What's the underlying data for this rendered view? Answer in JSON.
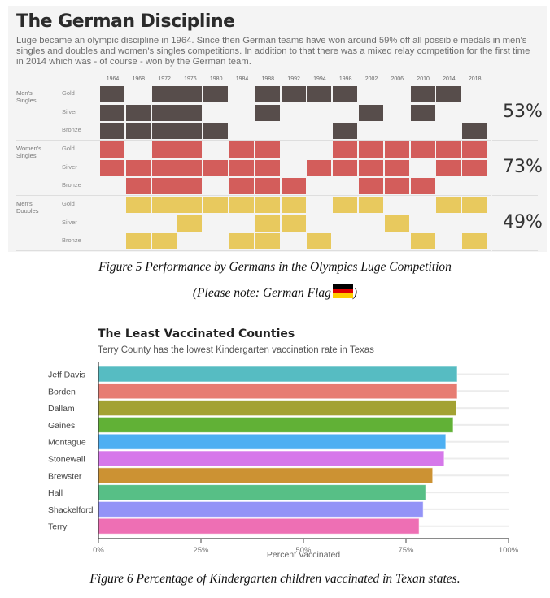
{
  "figure5": {
    "title": "The German Discipline",
    "description": "Luge became an olympic discipline in 1964. Since then German teams have won around 59% off all possible medals in men's singles and doubles and women's singles competitions. In addition to that there was a mixed relay competition for the first time in 2014 which was - of course - won by the German team.",
    "caption": "Figure 5 Performance by Germans in the Olympics Luge Competition",
    "note_prefix": "(Please note: German Flag",
    "note_suffix": ")",
    "flag_colors": [
      "#000000",
      "#dd0000",
      "#ffce00"
    ]
  },
  "figure6": {
    "caption": "Figure 6 Percentage of Kindergarten children vaccinated in Texan states."
  },
  "chart_data": [
    {
      "type": "heatmap",
      "title": "The German Discipline",
      "x": [
        "1964",
        "1968",
        "1972",
        "1976",
        "1980",
        "1984",
        "1988",
        "1992",
        "1994",
        "1998",
        "2002",
        "2006",
        "2010",
        "2014",
        "2018"
      ],
      "groups": [
        {
          "name": "Men's Singles",
          "color": "#574d4b",
          "percent_label": "53%",
          "rows": [
            {
              "medal": "Gold",
              "won": [
                1,
                0,
                1,
                1,
                1,
                0,
                1,
                1,
                1,
                1,
                0,
                0,
                1,
                1,
                0
              ]
            },
            {
              "medal": "Silver",
              "won": [
                1,
                1,
                1,
                1,
                0,
                0,
                1,
                0,
                0,
                0,
                1,
                0,
                1,
                0,
                0
              ]
            },
            {
              "medal": "Bronze",
              "won": [
                1,
                1,
                1,
                1,
                1,
                0,
                0,
                0,
                0,
                1,
                0,
                0,
                0,
                0,
                1
              ]
            }
          ]
        },
        {
          "name": "Women's Singles",
          "color": "#d35d5b",
          "percent_label": "73%",
          "rows": [
            {
              "medal": "Gold",
              "won": [
                1,
                0,
                1,
                1,
                0,
                1,
                1,
                0,
                0,
                1,
                1,
                1,
                1,
                1,
                1
              ]
            },
            {
              "medal": "Silver",
              "won": [
                1,
                1,
                1,
                1,
                1,
                1,
                1,
                0,
                1,
                1,
                1,
                1,
                0,
                1,
                1
              ]
            },
            {
              "medal": "Bronze",
              "won": [
                0,
                1,
                1,
                1,
                0,
                1,
                1,
                1,
                0,
                0,
                1,
                1,
                1,
                0,
                0
              ]
            }
          ]
        },
        {
          "name": "Men's Doubles",
          "color": "#e8c95e",
          "percent_label": "49%",
          "rows": [
            {
              "medal": "Gold",
              "won": [
                0,
                1,
                1,
                1,
                1,
                1,
                1,
                1,
                0,
                1,
                1,
                0,
                0,
                1,
                1
              ]
            },
            {
              "medal": "Silver",
              "won": [
                0,
                0,
                0,
                1,
                0,
                0,
                1,
                1,
                0,
                0,
                0,
                1,
                0,
                0,
                0
              ]
            },
            {
              "medal": "Bronze",
              "won": [
                0,
                1,
                1,
                0,
                0,
                1,
                1,
                0,
                1,
                0,
                0,
                0,
                1,
                0,
                1
              ]
            }
          ]
        }
      ]
    },
    {
      "type": "bar",
      "orientation": "horizontal",
      "title": "The Least Vaccinated Counties",
      "subtitle": "Terry County has the lowest Kindergarten vaccination rate in Texas",
      "xlabel": "Percent Vaccinated",
      "ylabel": "",
      "xlim": [
        0,
        100
      ],
      "xticks": [
        "0%",
        "25%",
        "50%",
        "75%",
        "100%"
      ],
      "xtick_values": [
        0,
        25,
        50,
        75,
        100
      ],
      "grid": true,
      "categories": [
        "Jeff Davis",
        "Borden",
        "Dallam",
        "Gaines",
        "Montague",
        "Stonewall",
        "Brewster",
        "Hall",
        "Shackelford",
        "Terry"
      ],
      "values": [
        87.5,
        87.5,
        87.3,
        86.5,
        84.7,
        84.3,
        81.5,
        79.8,
        79.2,
        78.2
      ],
      "colors": [
        "#56bcc2",
        "#e77c72",
        "#a3a233",
        "#61b136",
        "#4daff2",
        "#d678ea",
        "#cc9233",
        "#57bf86",
        "#9393f7",
        "#ee6fb4"
      ]
    }
  ]
}
